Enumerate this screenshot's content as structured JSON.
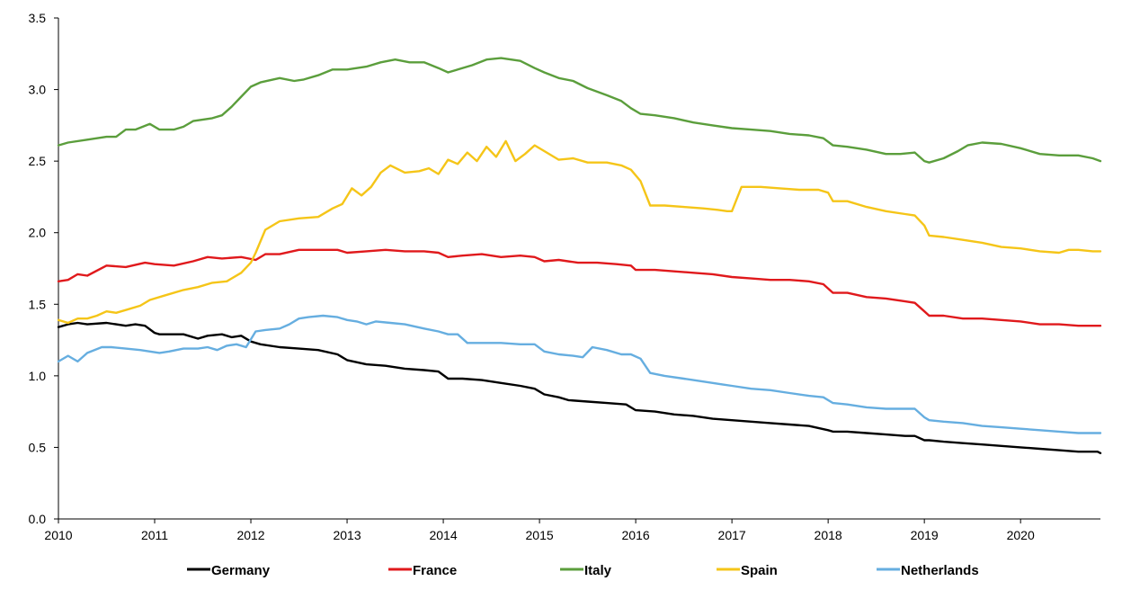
{
  "chart_data": {
    "type": "line",
    "title": "",
    "xlabel": "",
    "ylabel": "",
    "xlim": [
      2010,
      2020.83
    ],
    "ylim": [
      0,
      3.5
    ],
    "grid": false,
    "legend_position": "bottom",
    "x_ticks": [
      "2010",
      "2011",
      "2012",
      "2013",
      "2014",
      "2015",
      "2016",
      "2017",
      "2018",
      "2019",
      "2020"
    ],
    "y_ticks": [
      "0.0",
      "0.5",
      "1.0",
      "1.5",
      "2.0",
      "2.5",
      "3.0",
      "3.5"
    ],
    "series": [
      {
        "name": "Germany",
        "color": "#000000",
        "x": [
          2010.0,
          2010.1,
          2010.2,
          2010.3,
          2010.5,
          2010.7,
          2010.8,
          2010.9,
          2011.0,
          2011.05,
          2011.3,
          2011.45,
          2011.55,
          2011.7,
          2011.8,
          2011.9,
          2012.0,
          2012.1,
          2012.3,
          2012.5,
          2012.7,
          2012.9,
          2013.0,
          2013.2,
          2013.4,
          2013.6,
          2013.8,
          2013.95,
          2014.05,
          2014.2,
          2014.4,
          2014.6,
          2014.8,
          2014.95,
          2015.05,
          2015.2,
          2015.3,
          2015.5,
          2015.7,
          2015.9,
          2016.0,
          2016.2,
          2016.4,
          2016.6,
          2016.8,
          2017.0,
          2017.2,
          2017.4,
          2017.6,
          2017.8,
          2018.0,
          2018.05,
          2018.2,
          2018.4,
          2018.6,
          2018.8,
          2018.9,
          2019.0,
          2019.05,
          2019.2,
          2019.4,
          2019.6,
          2019.8,
          2020.0,
          2020.2,
          2020.4,
          2020.6,
          2020.8,
          2020.83
        ],
        "y": [
          1.34,
          1.36,
          1.37,
          1.36,
          1.37,
          1.35,
          1.36,
          1.35,
          1.3,
          1.29,
          1.29,
          1.26,
          1.28,
          1.29,
          1.27,
          1.28,
          1.24,
          1.22,
          1.2,
          1.19,
          1.18,
          1.15,
          1.11,
          1.08,
          1.07,
          1.05,
          1.04,
          1.03,
          0.98,
          0.98,
          0.97,
          0.95,
          0.93,
          0.91,
          0.87,
          0.85,
          0.83,
          0.82,
          0.81,
          0.8,
          0.76,
          0.75,
          0.73,
          0.72,
          0.7,
          0.69,
          0.68,
          0.67,
          0.66,
          0.65,
          0.62,
          0.61,
          0.61,
          0.6,
          0.59,
          0.58,
          0.58,
          0.55,
          0.55,
          0.54,
          0.53,
          0.52,
          0.51,
          0.5,
          0.49,
          0.48,
          0.47,
          0.47,
          0.46
        ]
      },
      {
        "name": "France",
        "color": "#e0191c",
        "x": [
          2010.0,
          2010.1,
          2010.2,
          2010.3,
          2010.5,
          2010.7,
          2010.9,
          2011.0,
          2011.2,
          2011.4,
          2011.55,
          2011.7,
          2011.9,
          2012.05,
          2012.15,
          2012.3,
          2012.5,
          2012.7,
          2012.9,
          2013.0,
          2013.2,
          2013.4,
          2013.6,
          2013.8,
          2013.95,
          2014.05,
          2014.2,
          2014.4,
          2014.6,
          2014.8,
          2014.95,
          2015.05,
          2015.2,
          2015.4,
          2015.6,
          2015.8,
          2015.95,
          2016.0,
          2016.2,
          2016.4,
          2016.6,
          2016.8,
          2017.0,
          2017.2,
          2017.4,
          2017.6,
          2017.8,
          2017.95,
          2018.05,
          2018.2,
          2018.4,
          2018.6,
          2018.8,
          2018.9,
          2019.0,
          2019.05,
          2019.2,
          2019.4,
          2019.6,
          2019.8,
          2020.0,
          2020.2,
          2020.4,
          2020.6,
          2020.8,
          2020.83
        ],
        "y": [
          1.66,
          1.67,
          1.71,
          1.7,
          1.77,
          1.76,
          1.79,
          1.78,
          1.77,
          1.8,
          1.83,
          1.82,
          1.83,
          1.81,
          1.85,
          1.85,
          1.88,
          1.88,
          1.88,
          1.86,
          1.87,
          1.88,
          1.87,
          1.87,
          1.86,
          1.83,
          1.84,
          1.85,
          1.83,
          1.84,
          1.83,
          1.8,
          1.81,
          1.79,
          1.79,
          1.78,
          1.77,
          1.74,
          1.74,
          1.73,
          1.72,
          1.71,
          1.69,
          1.68,
          1.67,
          1.67,
          1.66,
          1.64,
          1.58,
          1.58,
          1.55,
          1.54,
          1.52,
          1.51,
          1.45,
          1.42,
          1.42,
          1.4,
          1.4,
          1.39,
          1.38,
          1.36,
          1.36,
          1.35,
          1.35,
          1.35
        ]
      },
      {
        "name": "Italy",
        "color": "#5b9e3c",
        "x": [
          2010.0,
          2010.1,
          2010.3,
          2010.5,
          2010.6,
          2010.7,
          2010.8,
          2010.95,
          2011.05,
          2011.2,
          2011.3,
          2011.4,
          2011.6,
          2011.7,
          2011.8,
          2011.9,
          2012.0,
          2012.1,
          2012.3,
          2012.45,
          2012.55,
          2012.7,
          2012.85,
          2013.0,
          2013.2,
          2013.35,
          2013.5,
          2013.65,
          2013.8,
          2013.95,
          2014.05,
          2014.3,
          2014.45,
          2014.6,
          2014.8,
          2014.95,
          2015.05,
          2015.2,
          2015.35,
          2015.5,
          2015.7,
          2015.85,
          2015.95,
          2016.05,
          2016.2,
          2016.4,
          2016.6,
          2016.8,
          2017.0,
          2017.2,
          2017.4,
          2017.6,
          2017.8,
          2017.95,
          2018.05,
          2018.2,
          2018.4,
          2018.6,
          2018.75,
          2018.9,
          2019.0,
          2019.05,
          2019.2,
          2019.35,
          2019.45,
          2019.6,
          2019.8,
          2020.0,
          2020.2,
          2020.4,
          2020.6,
          2020.75,
          2020.83
        ],
        "y": [
          2.61,
          2.63,
          2.65,
          2.67,
          2.67,
          2.72,
          2.72,
          2.76,
          2.72,
          2.72,
          2.74,
          2.78,
          2.8,
          2.82,
          2.88,
          2.95,
          3.02,
          3.05,
          3.08,
          3.06,
          3.07,
          3.1,
          3.14,
          3.14,
          3.16,
          3.19,
          3.21,
          3.19,
          3.19,
          3.15,
          3.12,
          3.17,
          3.21,
          3.22,
          3.2,
          3.15,
          3.12,
          3.08,
          3.06,
          3.01,
          2.96,
          2.92,
          2.87,
          2.83,
          2.82,
          2.8,
          2.77,
          2.75,
          2.73,
          2.72,
          2.71,
          2.69,
          2.68,
          2.66,
          2.61,
          2.6,
          2.58,
          2.55,
          2.55,
          2.56,
          2.5,
          2.49,
          2.52,
          2.57,
          2.61,
          2.63,
          2.62,
          2.59,
          2.55,
          2.54,
          2.54,
          2.52,
          2.5
        ]
      },
      {
        "name": "Spain",
        "color": "#f5c518",
        "x": [
          2010.0,
          2010.1,
          2010.2,
          2010.3,
          2010.4,
          2010.5,
          2010.6,
          2010.7,
          2010.85,
          2010.95,
          2011.1,
          2011.3,
          2011.45,
          2011.6,
          2011.75,
          2011.9,
          2012.0,
          2012.05,
          2012.15,
          2012.3,
          2012.5,
          2012.7,
          2012.85,
          2012.95,
          2013.05,
          2013.15,
          2013.25,
          2013.35,
          2013.45,
          2013.6,
          2013.75,
          2013.85,
          2013.95,
          2014.05,
          2014.15,
          2014.25,
          2014.35,
          2014.45,
          2014.55,
          2014.65,
          2014.75,
          2014.85,
          2014.95,
          2015.05,
          2015.2,
          2015.35,
          2015.5,
          2015.7,
          2015.85,
          2015.95,
          2016.05,
          2016.15,
          2016.3,
          2016.5,
          2016.7,
          2016.85,
          2016.95,
          2017.0,
          2017.1,
          2017.3,
          2017.5,
          2017.7,
          2017.9,
          2018.0,
          2018.05,
          2018.2,
          2018.4,
          2018.6,
          2018.8,
          2018.9,
          2019.0,
          2019.05,
          2019.2,
          2019.4,
          2019.6,
          2019.8,
          2020.0,
          2020.2,
          2020.4,
          2020.5,
          2020.6,
          2020.75,
          2020.83
        ],
        "y": [
          1.39,
          1.37,
          1.4,
          1.4,
          1.42,
          1.45,
          1.44,
          1.46,
          1.49,
          1.53,
          1.56,
          1.6,
          1.62,
          1.65,
          1.66,
          1.72,
          1.79,
          1.86,
          2.02,
          2.08,
          2.1,
          2.11,
          2.17,
          2.2,
          2.31,
          2.26,
          2.32,
          2.42,
          2.47,
          2.42,
          2.43,
          2.45,
          2.41,
          2.51,
          2.48,
          2.56,
          2.5,
          2.6,
          2.53,
          2.64,
          2.5,
          2.55,
          2.61,
          2.57,
          2.51,
          2.52,
          2.49,
          2.49,
          2.47,
          2.44,
          2.36,
          2.19,
          2.19,
          2.18,
          2.17,
          2.16,
          2.15,
          2.15,
          2.32,
          2.32,
          2.31,
          2.3,
          2.3,
          2.28,
          2.22,
          2.22,
          2.18,
          2.15,
          2.13,
          2.12,
          2.05,
          1.98,
          1.97,
          1.95,
          1.93,
          1.9,
          1.89,
          1.87,
          1.86,
          1.88,
          1.88,
          1.87,
          1.87
        ]
      },
      {
        "name": "Netherlands",
        "color": "#66aee0",
        "x": [
          2010.0,
          2010.1,
          2010.2,
          2010.3,
          2010.45,
          2010.55,
          2010.7,
          2010.85,
          2010.95,
          2011.05,
          2011.15,
          2011.3,
          2011.45,
          2011.55,
          2011.65,
          2011.75,
          2011.85,
          2011.95,
          2012.05,
          2012.15,
          2012.3,
          2012.4,
          2012.5,
          2012.6,
          2012.75,
          2012.9,
          2013.0,
          2013.1,
          2013.2,
          2013.3,
          2013.45,
          2013.6,
          2013.8,
          2013.95,
          2014.05,
          2014.15,
          2014.25,
          2014.45,
          2014.6,
          2014.8,
          2014.95,
          2015.05,
          2015.2,
          2015.35,
          2015.45,
          2015.55,
          2015.7,
          2015.85,
          2015.95,
          2016.05,
          2016.15,
          2016.3,
          2016.5,
          2016.7,
          2016.9,
          2017.0,
          2017.2,
          2017.4,
          2017.6,
          2017.8,
          2017.95,
          2018.05,
          2018.2,
          2018.4,
          2018.6,
          2018.8,
          2018.9,
          2019.0,
          2019.05,
          2019.2,
          2019.4,
          2019.6,
          2019.8,
          2020.0,
          2020.2,
          2020.4,
          2020.6,
          2020.8,
          2020.83
        ],
        "y": [
          1.1,
          1.14,
          1.1,
          1.16,
          1.2,
          1.2,
          1.19,
          1.18,
          1.17,
          1.16,
          1.17,
          1.19,
          1.19,
          1.2,
          1.18,
          1.21,
          1.22,
          1.2,
          1.31,
          1.32,
          1.33,
          1.36,
          1.4,
          1.41,
          1.42,
          1.41,
          1.39,
          1.38,
          1.36,
          1.38,
          1.37,
          1.36,
          1.33,
          1.31,
          1.29,
          1.29,
          1.23,
          1.23,
          1.23,
          1.22,
          1.22,
          1.17,
          1.15,
          1.14,
          1.13,
          1.2,
          1.18,
          1.15,
          1.15,
          1.12,
          1.02,
          1.0,
          0.98,
          0.96,
          0.94,
          0.93,
          0.91,
          0.9,
          0.88,
          0.86,
          0.85,
          0.81,
          0.8,
          0.78,
          0.77,
          0.77,
          0.77,
          0.71,
          0.69,
          0.68,
          0.67,
          0.65,
          0.64,
          0.63,
          0.62,
          0.61,
          0.6,
          0.6,
          0.6
        ]
      }
    ]
  }
}
